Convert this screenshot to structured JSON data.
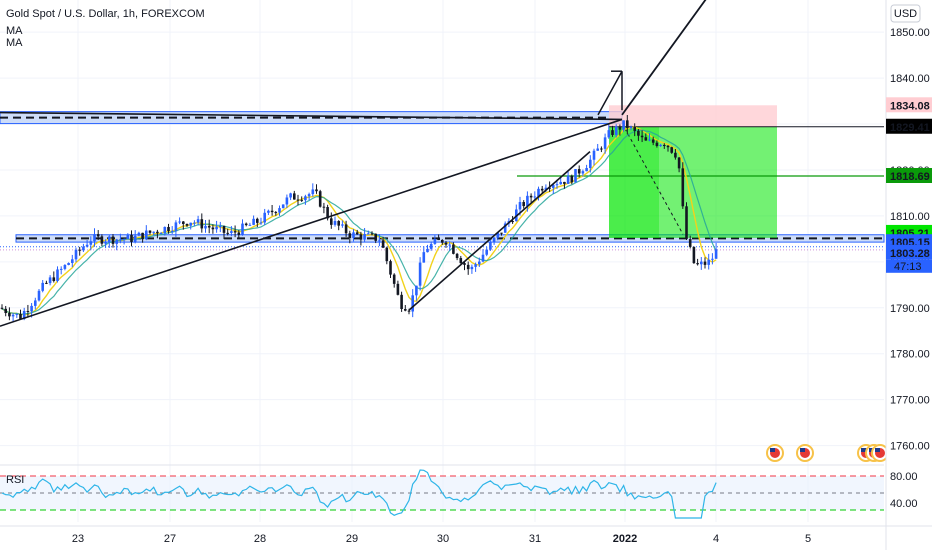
{
  "header": {
    "title": "Gold Spot / U.S. Dollar, 1h, FOREXCOM",
    "indicators": [
      "MA",
      "MA"
    ]
  },
  "currency_button": "USD",
  "rsi": {
    "label": "RSI",
    "levels": [
      "80.00",
      "40.00"
    ]
  },
  "countdown": "47:13",
  "colors": {
    "up": "#2962ff",
    "down": "#131722",
    "ma_fast": "#f2d21b",
    "ma_slow": "#26a69a",
    "zone_fill": "#bcd0f6",
    "zone_stroke": "#2962ff",
    "profit": "#00e600",
    "loss": "#ffcdd2",
    "rsi_line": "#2fb5e8",
    "rsi_red": "#f23645",
    "rsi_green": "#00c800",
    "price_tag_blue": "#2962ff",
    "price_tag_green": "#00c800",
    "price_tag_red": "#f23645",
    "price_tag_black": "#000000"
  },
  "chart_data": {
    "type": "candlestick",
    "title": "Gold Spot / U.S. Dollar, 1h, FOREXCOM",
    "ylim": [
      1756,
      1857
    ],
    "y_ticks": [
      1760,
      1770,
      1780,
      1790,
      1800,
      1810,
      1820,
      1830,
      1840,
      1850
    ],
    "x_ticks": [
      "23",
      "27",
      "28",
      "29",
      "30",
      "31",
      "2022",
      "4",
      "5"
    ],
    "price_labels": [
      {
        "value": "1834.08",
        "style": "loss"
      },
      {
        "value": "1829.41",
        "style": "entry"
      },
      {
        "value": "1818.69",
        "style": "green-line"
      },
      {
        "value": "1805.21",
        "style": "profit"
      },
      {
        "value": "1805.15",
        "style": "zone"
      },
      {
        "value": "1803.28",
        "style": "last"
      }
    ],
    "support_zone": [
      1804.3,
      1805.9
    ],
    "resistance_zone": [
      1830.1,
      1832.7
    ],
    "trade": {
      "entry": 1829.41,
      "stop": 1834.08,
      "target": 1805.21
    },
    "key_candles": [
      {
        "x": "23",
        "close": 1804
      },
      {
        "x": "27",
        "close": 1806
      },
      {
        "x": "28",
        "close": 1815
      },
      {
        "x": "29",
        "close": 1805
      },
      {
        "x": "30",
        "close": 1803
      },
      {
        "x": "31",
        "close": 1817
      },
      {
        "x": "2022",
        "close": 1829
      },
      {
        "x": "4",
        "close": 1803.28
      }
    ]
  }
}
